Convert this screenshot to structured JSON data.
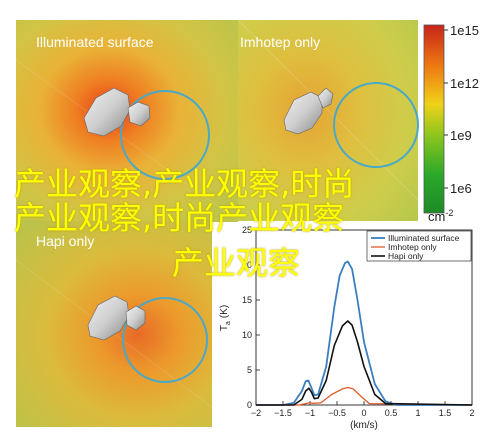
{
  "panels": [
    {
      "title": "Illuminated surface"
    },
    {
      "title": "Imhotep only"
    },
    {
      "title": "Hapi only"
    }
  ],
  "colorbar": {
    "ticks": [
      "1e15",
      "1e12",
      "1e9",
      "1e6"
    ],
    "unit": "cm",
    "exponent": "-2"
  },
  "colors": {
    "illuminated": "#3a7fc2",
    "imhotep": "#e05a2a",
    "hapi": "#111111",
    "orbit": "#4aa8c8"
  },
  "watermark": {
    "line1": "产业观察,产业观察,时尚",
    "line2": "产业观察,时尚产业观察",
    "line3": "产业观察"
  },
  "chart_data": {
    "type": "line",
    "xlabel": "(km/s)",
    "ylabel": "T",
    "ylabel_sub": "a",
    "ylabel_unit": "(K)",
    "xlim": [
      -2,
      2
    ],
    "ylim": [
      0,
      25
    ],
    "xticks": [
      "−2",
      "−1.5",
      "−1",
      "−0.5",
      "0",
      "0.5",
      "1",
      "1.5",
      "2"
    ],
    "yticks": [
      "0",
      "5",
      "10",
      "15",
      "20",
      "25"
    ],
    "legend_position": "top-right",
    "series": [
      {
        "name": "Illuminated surface",
        "x": [
          -2,
          -1.5,
          -1.3,
          -1.15,
          -1.08,
          -1.03,
          -0.97,
          -0.92,
          -0.85,
          -0.7,
          -0.55,
          -0.45,
          -0.35,
          -0.3,
          -0.22,
          -0.12,
          0,
          0.2,
          0.4,
          0.6,
          2
        ],
        "y": [
          0,
          0,
          0.3,
          2.0,
          3.4,
          3.5,
          2.4,
          1.4,
          1.5,
          5.5,
          14.0,
          18.5,
          20.3,
          20.5,
          19.4,
          15.0,
          9.0,
          3.0,
          0.5,
          0,
          0
        ]
      },
      {
        "name": "Imhotep only",
        "x": [
          -2,
          -1.2,
          -1.05,
          -1.0,
          -0.95,
          -0.8,
          -0.6,
          -0.4,
          -0.3,
          -0.2,
          -0.05,
          0.1,
          2
        ],
        "y": [
          0,
          0,
          0.25,
          0.35,
          0.25,
          0.3,
          1.5,
          2.3,
          2.5,
          2.3,
          1.2,
          0.2,
          0
        ]
      },
      {
        "name": "Hapi only",
        "x": [
          -2,
          -1.3,
          -1.15,
          -1.08,
          -1.02,
          -0.97,
          -0.92,
          -0.85,
          -0.7,
          -0.55,
          -0.4,
          -0.3,
          -0.22,
          -0.12,
          0,
          0.2,
          0.4,
          2
        ],
        "y": [
          0,
          0,
          0.8,
          2.0,
          2.4,
          1.8,
          0.9,
          1.0,
          3.5,
          8.5,
          11.3,
          12.0,
          11.4,
          9.0,
          5.5,
          1.5,
          0.2,
          0
        ]
      }
    ]
  }
}
